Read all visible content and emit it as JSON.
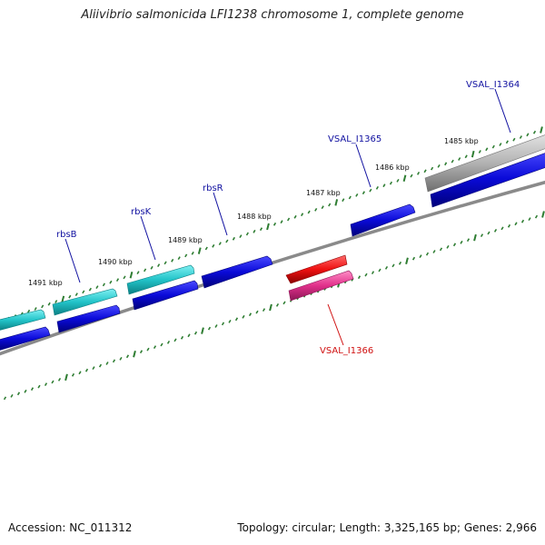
{
  "title": "Aliivibrio salmonicida LFI1238 chromosome 1, complete genome",
  "footer": {
    "accession": "Accession: NC_011312",
    "topology": "Topology: circular; Length: 3,325,165 bp; Genes: 2,966"
  },
  "colors": {
    "tick": "#2e7d32",
    "backbone": "#8a8a8a",
    "forward_gene": "#0a0ad8",
    "rrna_like": "#22c3c8",
    "pseudo_gray": "#b5b5b5",
    "red_gene": "#ee1111",
    "magenta_gene": "#e0308a",
    "label_blue": "#1010a0",
    "label_red": "#d01010"
  },
  "scale": {
    "labels": [
      "1485 kbp",
      "1486 kbp",
      "1487 kbp",
      "1488 kbp",
      "1489 kbp",
      "1490 kbp",
      "1491 kbp"
    ]
  },
  "genes": [
    {
      "name": "VSAL_I1364",
      "color": "label_blue"
    },
    {
      "name": "VSAL_I1365",
      "color": "label_blue"
    },
    {
      "name": "rbsR",
      "color": "label_blue"
    },
    {
      "name": "rbsK",
      "color": "label_blue"
    },
    {
      "name": "rbsB",
      "color": "label_blue"
    },
    {
      "name": "VSAL_I1366",
      "color": "label_red"
    }
  ]
}
